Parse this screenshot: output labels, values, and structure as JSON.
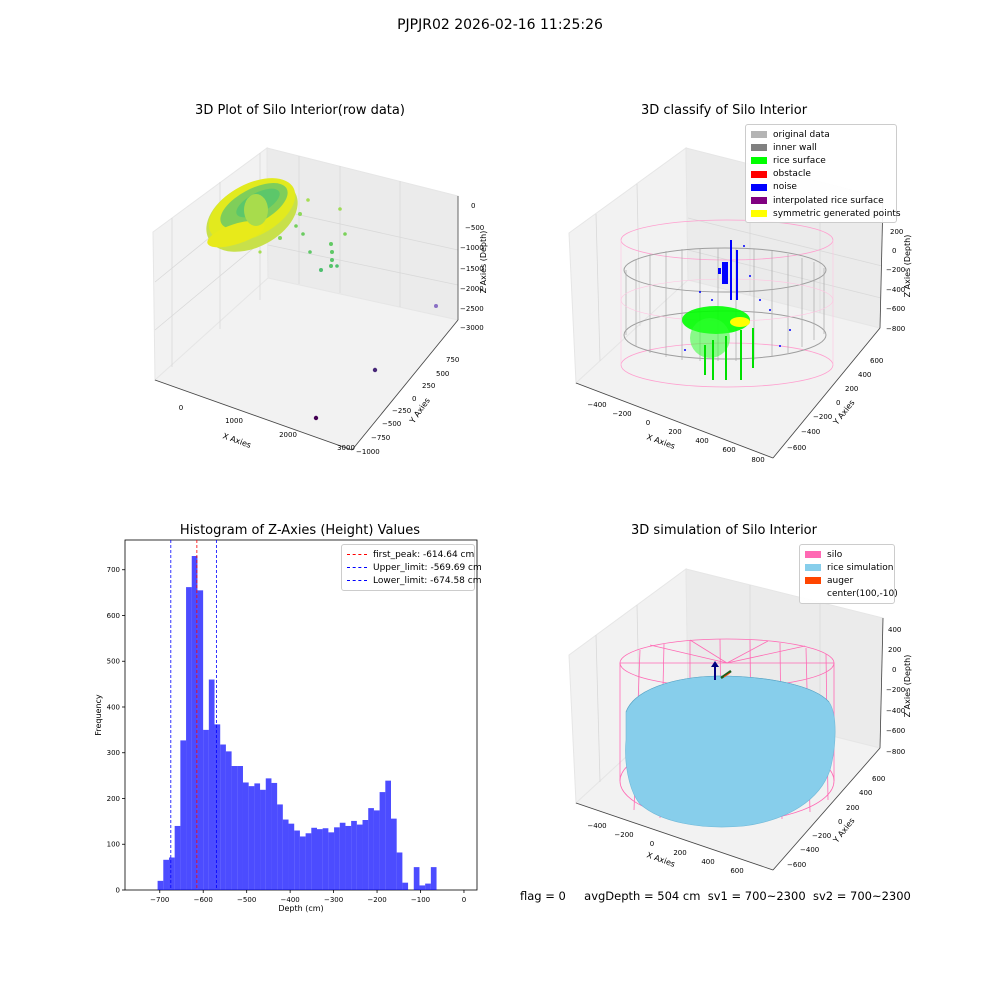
{
  "figure": {
    "suptitle": "PJPJR02 2026-02-16 11:25:26",
    "status": {
      "flag": "flag = 0",
      "avg_depth": "avgDepth = 504 cm",
      "sv1": "sv1 = 700~2300",
      "sv2": "sv2 = 700~2300"
    }
  },
  "chart_data": [
    {
      "type": "scatter3d",
      "title": "3D Plot of Silo Interior(row data)",
      "xlabel": "X Axies",
      "ylabel": "Y Axies",
      "zlabel": "Z Axies (Depth)",
      "x_ticks": [
        "0",
        "1000",
        "2000",
        "3000"
      ],
      "y_ticks": [
        "750",
        "500",
        "250",
        "0",
        "−250",
        "−500",
        "−750",
        "−1000"
      ],
      "z_ticks": [
        "0",
        "−500",
        "−1000",
        "−1500",
        "−2000",
        "−2500",
        "−3000"
      ],
      "colormap": "viridis (colored by depth)"
    },
    {
      "type": "scatter3d",
      "title": "3D classify of Silo Interior",
      "xlabel": "X Axies",
      "ylabel": "Y Axies",
      "zlabel": "Z Axies (Depth)",
      "x_ticks": [
        "−400",
        "−200",
        "0",
        "200",
        "400",
        "600",
        "800"
      ],
      "y_ticks": [
        "600",
        "400",
        "200",
        "0",
        "−200",
        "−400",
        "−600"
      ],
      "z_ticks": [
        "200",
        "0",
        "−200",
        "−400",
        "−600",
        "−800"
      ],
      "legend": [
        {
          "label": "original data",
          "color": "#b4b4b4"
        },
        {
          "label": "inner wall",
          "color": "#808080"
        },
        {
          "label": "rice surface",
          "color": "#00ff00"
        },
        {
          "label": "obstacle",
          "color": "#ff0000"
        },
        {
          "label": "noise",
          "color": "#0000ff"
        },
        {
          "label": "interpolated rice surface",
          "color": "#800080"
        },
        {
          "label": "symmetric generated points",
          "color": "#ffff00"
        }
      ]
    },
    {
      "type": "bar",
      "title": "Histogram of Z-Axies (Height) Values",
      "xlabel": "Depth (cm)",
      "ylabel": "Frequency",
      "xlim": [
        -780,
        30
      ],
      "ylim": [
        0,
        765
      ],
      "x_ticks": [
        -700,
        -600,
        -500,
        -400,
        -300,
        -200,
        -100,
        0
      ],
      "y_ticks": [
        0,
        100,
        200,
        300,
        400,
        500,
        600,
        700
      ],
      "x_tick_labels": [
        "−700",
        "−600",
        "−500",
        "−400",
        "−300",
        "−200",
        "−100",
        "0"
      ],
      "bar_color": "#0000ff",
      "bin_start": -705,
      "bin_width": 13.1,
      "values": [
        20,
        66,
        71,
        140,
        327,
        662,
        730,
        655,
        350,
        460,
        362,
        318,
        303,
        271,
        271,
        235,
        227,
        233,
        219,
        244,
        234,
        187,
        154,
        145,
        130,
        117,
        124,
        136,
        133,
        135,
        126,
        137,
        147,
        140,
        151,
        143,
        153,
        179,
        174,
        214,
        239,
        156,
        82,
        16,
        0,
        50,
        10,
        14,
        50
      ],
      "lines": [
        {
          "x": -614.64,
          "color": "#ff0000",
          "label": "first_peak: -614.64 cm"
        },
        {
          "x": -569.69,
          "color": "#0000ff",
          "label": "Upper_limit: -569.69 cm"
        },
        {
          "x": -674.58,
          "color": "#0000ff",
          "label": "Lower_limit: -674.58 cm"
        }
      ],
      "legend_position": "top-right"
    },
    {
      "type": "surface3d",
      "title": "3D simulation of Silo Interior",
      "xlabel": "X Axies",
      "ylabel": "Y Axies",
      "zlabel": "Z Axies (Depth)",
      "x_ticks": [
        "−400",
        "−200",
        "0",
        "200",
        "400",
        "600"
      ],
      "y_ticks": [
        "600",
        "400",
        "200",
        "0",
        "−200",
        "−400",
        "−600"
      ],
      "z_ticks": [
        "400",
        "200",
        "0",
        "−200",
        "−400",
        "−600",
        "−800"
      ],
      "legend": [
        {
          "label": "silo",
          "color": "#ff69b4"
        },
        {
          "label": "rice simulation",
          "color": "#87ceeb"
        },
        {
          "label": "auger",
          "color": "#ff4500"
        },
        {
          "label": "center(100,-10)",
          "color": ""
        }
      ]
    }
  ]
}
